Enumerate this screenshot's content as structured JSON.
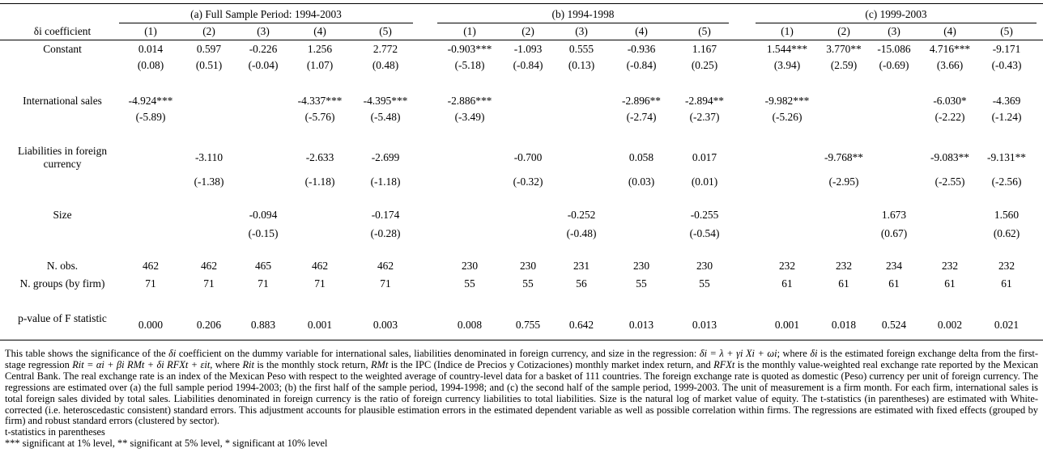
{
  "table": {
    "panels": [
      {
        "title": "(a) Full Sample Period: 1994-2003",
        "columns": [
          "(1)",
          "(2)",
          "(3)",
          "(4)",
          "(5)"
        ]
      },
      {
        "title": "(b) 1994-1998",
        "columns": [
          "(1)",
          "(2)",
          "(3)",
          "(4)",
          "(5)"
        ]
      },
      {
        "title": "(c) 1999-2003",
        "columns": [
          "(1)",
          "(2)",
          "(3)",
          "(4)",
          "(5)"
        ]
      }
    ],
    "header_label": "δi coefficient",
    "rows": [
      {
        "label": "Constant",
        "coef": [
          "0.014",
          "0.597",
          "-0.226",
          "1.256",
          "2.772",
          "-0.903***",
          "-1.093",
          "0.555",
          "-0.936",
          "1.167",
          "1.544***",
          "3.770**",
          "-15.086",
          "4.716***",
          "-9.171"
        ],
        "tstat": [
          "(0.08)",
          "(0.51)",
          "(-0.04)",
          "(1.07)",
          "(0.48)",
          "(-5.18)",
          "(-0.84)",
          "(0.13)",
          "(-0.84)",
          "(0.25)",
          "(3.94)",
          "(2.59)",
          "(-0.69)",
          "(3.66)",
          "(-0.43)"
        ]
      },
      {
        "label": "International sales",
        "coef": [
          "-4.924***",
          "",
          "",
          "-4.337***",
          "-4.395***",
          "-2.886***",
          "",
          "",
          "-2.896**",
          "-2.894**",
          "-9.982***",
          "",
          "",
          "-6.030*",
          "-4.369"
        ],
        "tstat": [
          "(-5.89)",
          "",
          "",
          "(-5.76)",
          "(-5.48)",
          "(-3.49)",
          "",
          "",
          "(-2.74)",
          "(-2.37)",
          "(-5.26)",
          "",
          "",
          "(-2.22)",
          "(-1.24)"
        ]
      },
      {
        "label": "Liabilities in foreign currency",
        "coef": [
          "",
          "-3.110",
          "",
          "-2.633",
          "-2.699",
          "",
          "-0.700",
          "",
          "0.058",
          "0.017",
          "",
          "-9.768**",
          "",
          "-9.083**",
          "-9.131**"
        ],
        "tstat": [
          "",
          "(-1.38)",
          "",
          "(-1.18)",
          "(-1.18)",
          "",
          "(-0.32)",
          "",
          "(0.03)",
          "(0.01)",
          "",
          "(-2.95)",
          "",
          "(-2.55)",
          "(-2.56)"
        ]
      },
      {
        "label": "Size",
        "coef": [
          "",
          "",
          "-0.094",
          "",
          "-0.174",
          "",
          "",
          "-0.252",
          "",
          "-0.255",
          "",
          "",
          "1.673",
          "",
          "1.560"
        ],
        "tstat": [
          "",
          "",
          "(-0.15)",
          "",
          "(-0.28)",
          "",
          "",
          "(-0.48)",
          "",
          "(-0.54)",
          "",
          "",
          "(0.67)",
          "",
          "(0.62)"
        ]
      }
    ],
    "nobs": {
      "label": "N. obs.",
      "values": [
        "462",
        "462",
        "465",
        "462",
        "462",
        "230",
        "230",
        "231",
        "230",
        "230",
        "232",
        "232",
        "234",
        "232",
        "232"
      ]
    },
    "ngroups": {
      "label": "N. groups (by firm)",
      "values": [
        "71",
        "71",
        "71",
        "71",
        "71",
        "55",
        "55",
        "56",
        "55",
        "55",
        "61",
        "61",
        "61",
        "61",
        "61"
      ]
    },
    "pvalue": {
      "label": "p-value of F statistic",
      "values": [
        "0.000",
        "0.206",
        "0.883",
        "0.001",
        "0.003",
        "0.008",
        "0.755",
        "0.642",
        "0.013",
        "0.013",
        "0.001",
        "0.018",
        "0.524",
        "0.002",
        "0.021"
      ]
    }
  },
  "notes": {
    "n1": "This table shows the significance of the ",
    "n1_sym": "δi",
    "n2": " coefficient on the dummy variable for international sales, liabilities denominated in foreign currency, and size in the regression: ",
    "n2_eq": "δi = λ + γi Xi + ωi",
    "n3": "; where ",
    "n3_sym": "δi",
    "n4": " is the estimated foreign exchange delta from the first-stage regression ",
    "n4_eq": "Rit = αi + βi RMt + δi RFXt + εit",
    "n5": ", where ",
    "n5_sym": "Rit",
    "n6": " is the monthly stock return, ",
    "n6_sym": "RMt",
    "n7": " is the IPC (Indice de Precios y Cotizaciones) monthly market index return, and ",
    "n7_sym": "RFXt",
    "n8": " is the monthly value-weighted real exchange rate reported by the Mexican Central Bank.   The real exchange rate is an index of the Mexican Peso with respect to the weighted average of country-level data for a basket of 111 countries.   The foreign exchange rate is quoted as domestic (Peso) currency per unit of foreign currency. The regressions are estimated over (a) the full sample period 1994-2003; (b) the first half of the sample period, 1994-1998; and (c) the second half of the sample period, 1999-2003. The unit of measurement is a firm month. For each firm, international sales is total foreign sales divided by total sales.   Liabilities denominated in foreign currency is the ratio of foreign currency liabilities to total liabilities. Size is the natural log of market value of equity.   The t-statistics (in parentheses) are estimated with White-corrected (i.e. heteroscedastic consistent) standard errors.    This adjustment accounts for plausible estimation errors in the estimated dependent variable as well as possible correlation within firms. The regressions are estimated with fixed effects (grouped by firm) and robust standard errors (clustered by sector).",
    "tstat_note": "t-statistics in parentheses",
    "sig_note": "*** significant at 1% level, ** significant at 5% level, * significant at 10% level"
  }
}
